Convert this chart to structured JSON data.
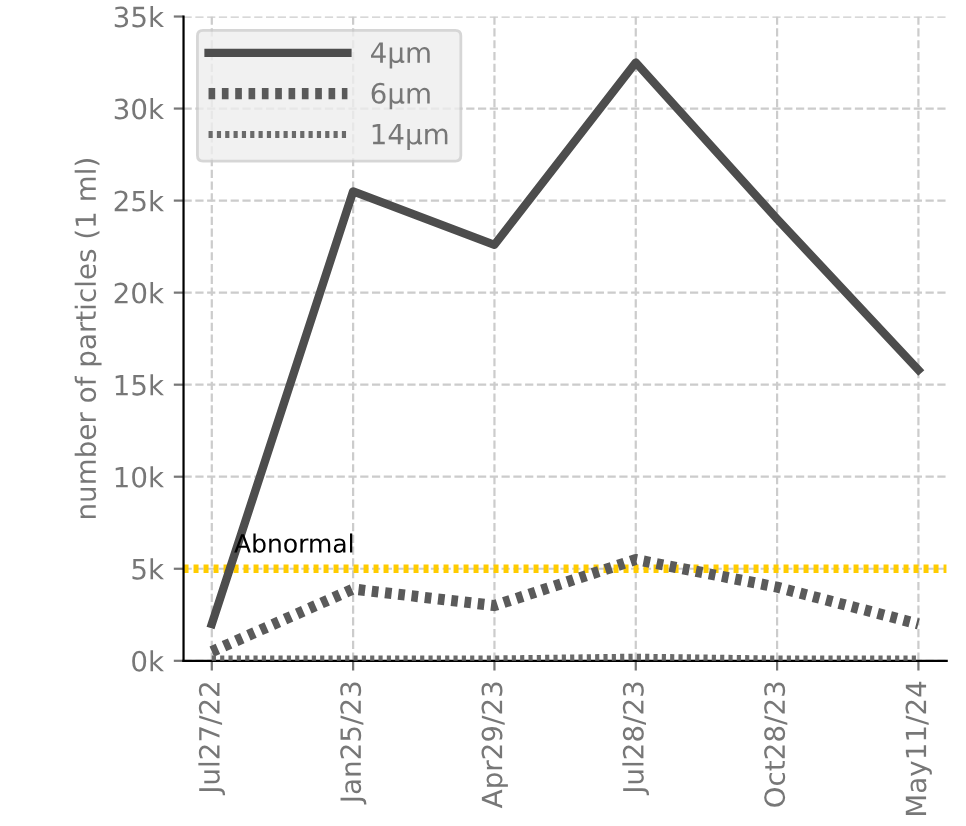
{
  "chart_data": {
    "type": "line",
    "ylabel": "number of particles (1 ml)",
    "categories": [
      "Jul27/22",
      "Jan25/23",
      "Apr29/23",
      "Jul28/23",
      "Oct28/23",
      "May11/24"
    ],
    "series": [
      {
        "name": "4µm",
        "color": "#4d4d4d",
        "line_style": "solid",
        "values": [
          2000,
          25500,
          22600,
          32500,
          24000,
          15800
        ]
      },
      {
        "name": "6µm",
        "color": "#5a5a5a",
        "line_style": "dotted",
        "values": [
          500,
          3900,
          3000,
          5500,
          4000,
          2000
        ]
      },
      {
        "name": "14µm",
        "color": "#6a6a6a",
        "line_style": "dotted",
        "values": [
          100,
          100,
          100,
          200,
          100,
          100
        ]
      }
    ],
    "ylim": [
      0,
      35000
    ],
    "yticks": [
      {
        "value": 0,
        "label": "0k"
      },
      {
        "value": 5000,
        "label": "5k"
      },
      {
        "value": 10000,
        "label": "10k"
      },
      {
        "value": 15000,
        "label": "15k"
      },
      {
        "value": 20000,
        "label": "20k"
      },
      {
        "value": 25000,
        "label": "25k"
      },
      {
        "value": 30000,
        "label": "30k"
      },
      {
        "value": 35000,
        "label": "35k"
      }
    ],
    "ref_lines": [
      {
        "axis": "y",
        "value": 5000,
        "label": "Abnormal",
        "color": "#ffcc00",
        "line_style": "dotted"
      }
    ],
    "grid": true,
    "legend": "top left",
    "marker": "none"
  }
}
